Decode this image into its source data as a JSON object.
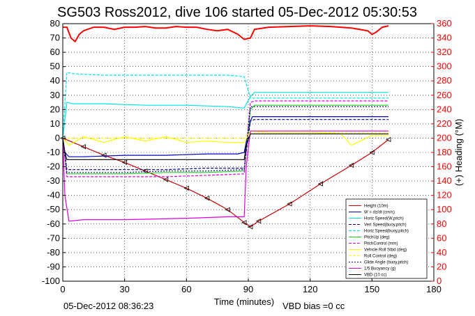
{
  "chart_data": {
    "type": "line",
    "title": "SG503 Ross2012, dive 106 started 05-Dec-2012 05:30:53",
    "xlabel": "Time (minutes)",
    "ylabel": "",
    "ylabel_right": "(+) Heading (°M)",
    "xlim": [
      0,
      180
    ],
    "ylim": [
      -100,
      80
    ],
    "ylim_right": [
      0,
      360
    ],
    "x_ticks": [
      0,
      30,
      60,
      90,
      120,
      150,
      180
    ],
    "y_ticks": [
      80,
      70,
      60,
      50,
      40,
      30,
      20,
      10,
      0,
      -10,
      -20,
      -30,
      -40,
      -50,
      -60,
      -70,
      -80,
      -90,
      -100
    ],
    "y_ticks_right": [
      360,
      340,
      320,
      300,
      280,
      260,
      240,
      220,
      200,
      180,
      160,
      140,
      120,
      100,
      80,
      60,
      40,
      20,
      0
    ],
    "grid": true,
    "legend_position": "bottom-right",
    "footer_left": "05-Dec-2012 08:36:23",
    "footer_right": "VBD bias =0 cc",
    "colors": {
      "heading": "#ff0000",
      "height": "#ff0000",
      "w": "#0000bb",
      "horiz_speed": "#00e5e5",
      "vert_speed": "#000080",
      "pitch": "#22cc22",
      "roll": "#ffff00",
      "glide": "#dd00dd",
      "vbd": "#000000"
    },
    "series": [
      {
        "name": "Height (10m)",
        "key": "height",
        "color": "#cc0000",
        "x": [
          0,
          10,
          20,
          30,
          40,
          50,
          60,
          70,
          80,
          88,
          91,
          95,
          110,
          125,
          140,
          150,
          158
        ],
        "values": [
          0,
          -6,
          -12,
          -17,
          -23,
          -29,
          -35,
          -42,
          -50,
          -59,
          -62,
          -58,
          -46,
          -32,
          -19,
          -10,
          -1
        ]
      },
      {
        "name": "W = dz/dt (cm/s)",
        "key": "w",
        "color": "#0000bb",
        "x": [
          0,
          1,
          3,
          10,
          30,
          50,
          70,
          85,
          88,
          91,
          92,
          100,
          120,
          140,
          158
        ],
        "values": [
          0,
          -10,
          -13,
          -13,
          -12,
          -12,
          -11,
          -11,
          -10,
          12,
          15,
          15,
          15,
          15,
          15
        ]
      },
      {
        "name": "Horiz Speed(W,pitch)",
        "key": "horiz_speed_w",
        "color": "#00e5e5",
        "x": [
          0,
          2,
          5,
          20,
          40,
          60,
          80,
          88,
          91,
          93,
          110,
          130,
          158
        ],
        "values": [
          0,
          25,
          24,
          24,
          23,
          23,
          22,
          21,
          29,
          32,
          32,
          32,
          32
        ]
      },
      {
        "name": "Vert Speed(buoy,pitch)",
        "key": "vert_speed_buoy",
        "color": "#000080",
        "x": [
          0,
          2,
          10,
          30,
          50,
          70,
          88,
          91,
          93,
          110,
          130,
          158
        ],
        "values": [
          0,
          -22,
          -22,
          -22,
          -22,
          -21,
          -21,
          12,
          13,
          13,
          13,
          13
        ]
      },
      {
        "name": "Horiz Speed(buoy,pitch)",
        "key": "horiz_speed_buoy",
        "color": "#00e5e5",
        "x": [
          0,
          2,
          5,
          20,
          40,
          60,
          80,
          88,
          91,
          93,
          110,
          130,
          158
        ],
        "values": [
          0,
          46,
          45,
          44,
          44,
          44,
          44,
          43,
          28,
          28,
          28,
          28,
          28
        ]
      },
      {
        "name": "PitchUp (deg)",
        "key": "pitch_up",
        "color": "#22cc22",
        "x": [
          0,
          2,
          10,
          30,
          50,
          70,
          88,
          91,
          93,
          110,
          130,
          158
        ],
        "values": [
          0,
          -25,
          -25,
          -25,
          -24,
          -24,
          -23,
          20,
          23,
          23,
          23,
          23
        ]
      },
      {
        "name": "PitchControl (mm)",
        "key": "pitch_control",
        "color": "#dd00dd",
        "x": [
          0,
          2,
          10,
          30,
          50,
          70,
          88,
          91,
          93,
          110,
          130,
          158
        ],
        "values": [
          0,
          -27,
          -27,
          -27,
          -27,
          -26,
          -25,
          25,
          26,
          26,
          26,
          26
        ]
      },
      {
        "name": "Vehicle Roll Stbd (deg)",
        "key": "vehicle_roll",
        "color": "#ffff00",
        "x": [
          0,
          3,
          10,
          20,
          30,
          40,
          50,
          60,
          70,
          80,
          88,
          91,
          100,
          120,
          135,
          140,
          150,
          158
        ],
        "values": [
          0,
          -5,
          1,
          -3,
          1,
          -2,
          1,
          -3,
          -2,
          -3,
          -3,
          5,
          4,
          4,
          3,
          -5,
          2,
          2
        ]
      },
      {
        "name": "Roll Control (deg)",
        "key": "roll_control",
        "color": "#ffff00",
        "x": [
          0,
          4,
          10,
          30,
          50,
          70,
          88,
          91,
          100,
          130,
          158
        ],
        "values": [
          0,
          0,
          0,
          0,
          0,
          0,
          0,
          4,
          4,
          4,
          4
        ]
      },
      {
        "name": "Glide Angle (buoy,pitch)",
        "key": "glide_angle",
        "color": "#000080",
        "x": [
          0,
          2,
          10,
          30,
          50,
          70,
          88,
          91,
          93,
          110,
          130,
          158
        ],
        "values": [
          0,
          -24,
          -24,
          -24,
          -23,
          -23,
          -22,
          22,
          22,
          22,
          22,
          22
        ]
      },
      {
        "name": "1/5 Buoyancy (g)",
        "key": "buoyancy",
        "color": "#dd00dd",
        "x": [
          0,
          1,
          3,
          10,
          30,
          60,
          80,
          88,
          89,
          91,
          93,
          110,
          130,
          158
        ],
        "values": [
          0,
          -40,
          -58,
          -57,
          -57,
          -56,
          -55,
          -55,
          -20,
          5,
          5,
          5,
          5,
          5
        ]
      },
      {
        "name": "VBD (10 cc)",
        "key": "vbd",
        "color": "#000000",
        "x": [
          0,
          1,
          2,
          10,
          30,
          50,
          70,
          88,
          89,
          91,
          93,
          110,
          130,
          158
        ],
        "values": [
          0,
          -10,
          -15,
          -15,
          -15,
          -15,
          -15,
          -15,
          -5,
          3,
          3,
          3,
          3,
          3
        ]
      },
      {
        "name": "Heading",
        "key": "heading",
        "color": "#ff0000",
        "axis": "right",
        "x": [
          0,
          2,
          4,
          6,
          8,
          10,
          15,
          20,
          25,
          30,
          35,
          40,
          45,
          50,
          55,
          60,
          65,
          70,
          75,
          80,
          85,
          88,
          91,
          93,
          100,
          110,
          120,
          130,
          140,
          148,
          150,
          152,
          155,
          158
        ],
        "values": [
          355,
          355,
          340,
          335,
          345,
          350,
          355,
          355,
          352,
          355,
          355,
          356,
          354,
          354,
          356,
          355,
          355,
          352,
          350,
          352,
          345,
          338,
          340,
          352,
          355,
          356,
          357,
          356,
          354,
          350,
          345,
          348,
          355,
          357
        ]
      }
    ]
  }
}
